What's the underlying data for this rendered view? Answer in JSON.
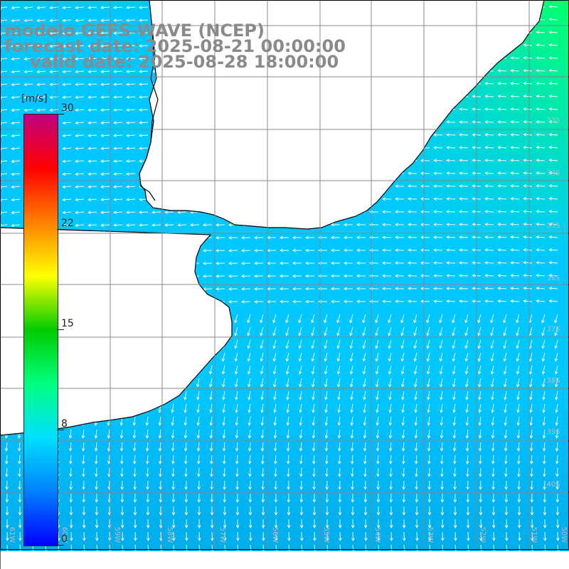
{
  "title": {
    "model": "modelo GEFS-WAVE (NCEP)",
    "forecast": "forecast date: 2025-08-21 00:00:00",
    "valid": "valid date: 2025-08-28 18:00:00"
  },
  "colorbar": {
    "unit": "[m/s]",
    "ticks": [
      "30",
      "22",
      "15",
      "8",
      "0"
    ],
    "range": [
      0,
      30
    ],
    "colors": [
      "#0000ff",
      "#0080ff",
      "#00e0ff",
      "#00ff80",
      "#00cc00",
      "#ffff00",
      "#ff8000",
      "#ff0000",
      "#c00080"
    ]
  },
  "axes": {
    "lon_labels": [
      "61W",
      "60W",
      "59W",
      "58W",
      "57W",
      "56W",
      "55W",
      "54W",
      "53W",
      "52W",
      "51W",
      "50W"
    ],
    "lat_labels": [
      "33S",
      "34S",
      "35S",
      "36S",
      "37S",
      "38S",
      "39S",
      "40S"
    ]
  },
  "field": {
    "variable": "wind speed",
    "arrow_color": "#ffffff",
    "land_color": "#ffffff",
    "coast_color": "#000000",
    "grid_color": "#888888"
  }
}
